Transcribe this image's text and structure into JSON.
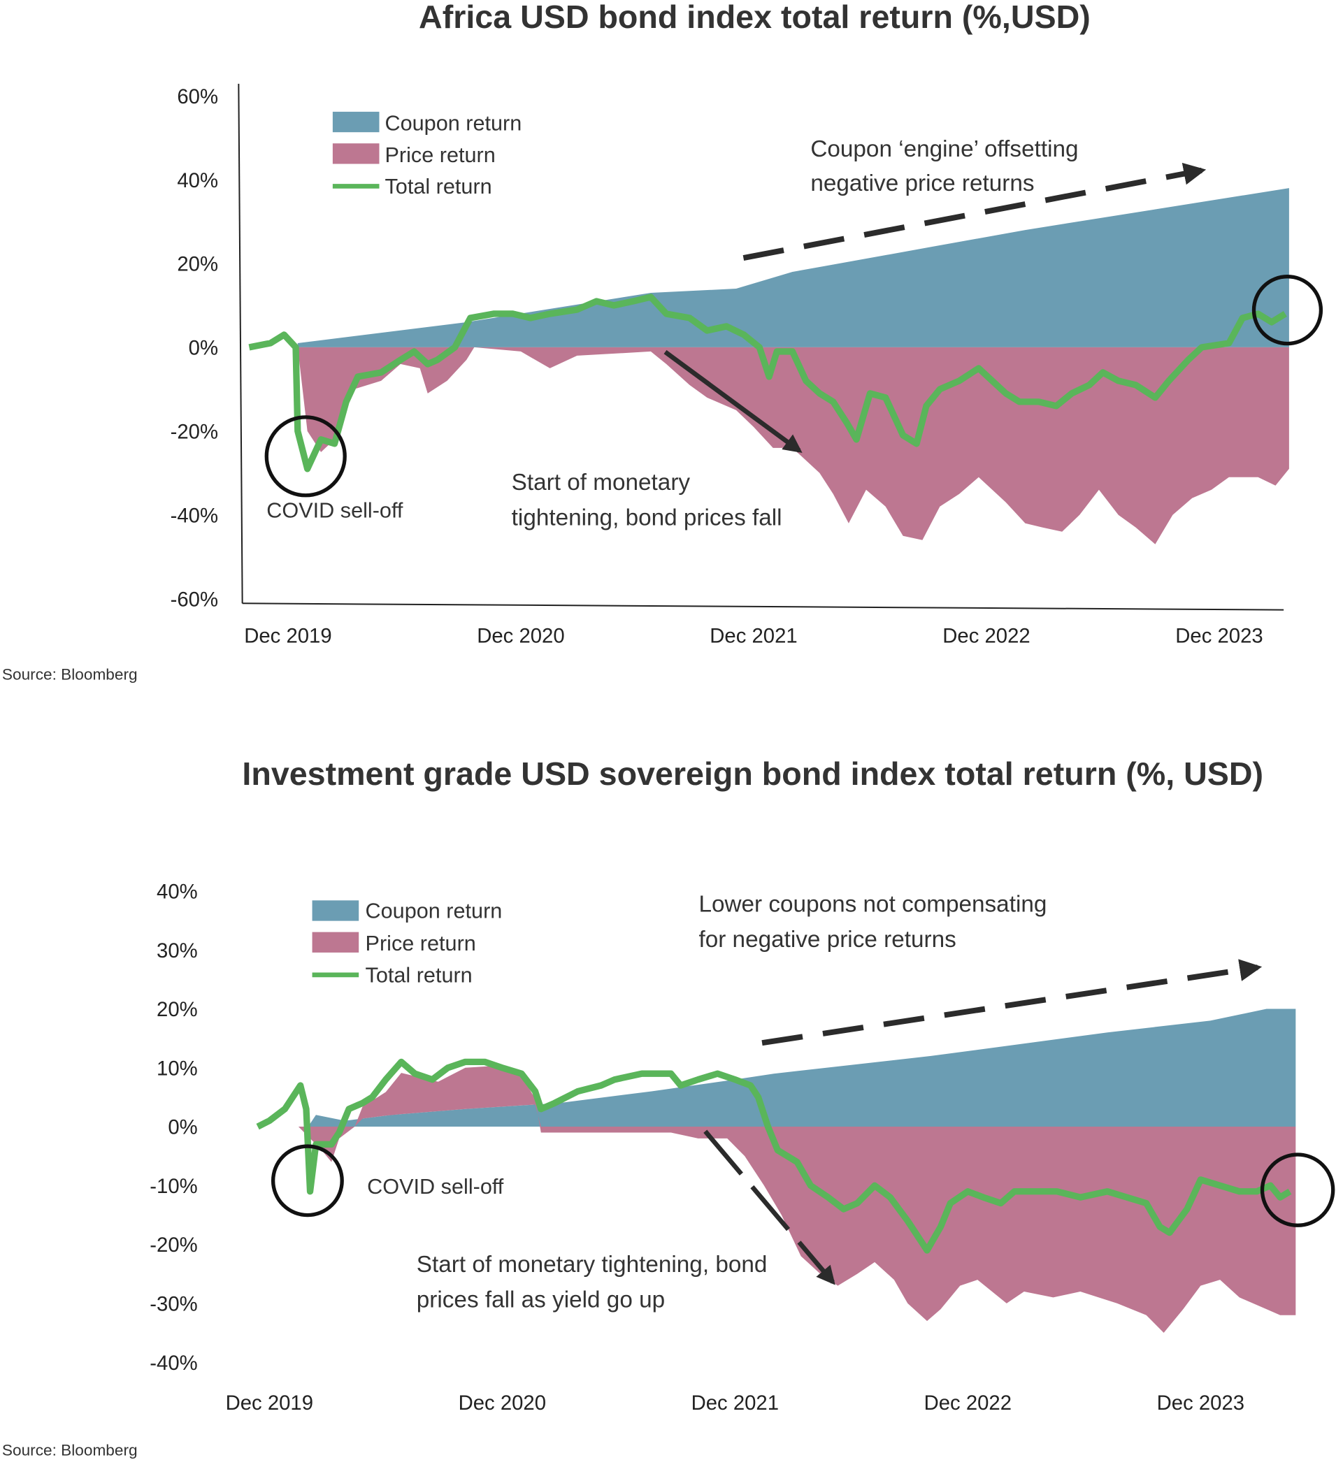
{
  "colors": {
    "coupon": "#6b9db3",
    "price": "#bd7791",
    "total": "#5ab55a",
    "annotation": "#2b2b2b"
  },
  "chart_data": [
    {
      "type": "area",
      "title": "Africa USD bond index total return (%,USD)",
      "x_unit": "months since Dec 2019",
      "ylim": [
        -60,
        60
      ],
      "y_ticks": [
        {
          "v": 60,
          "label": "60%"
        },
        {
          "v": 40,
          "label": "40%"
        },
        {
          "v": 20,
          "label": "20%"
        },
        {
          "v": 0,
          "label": "0%"
        },
        {
          "v": -20,
          "label": "-20%"
        },
        {
          "v": -40,
          "label": "-40%"
        },
        {
          "v": -60,
          "label": "-60%"
        }
      ],
      "x_ticks": [
        {
          "m": 0,
          "label": "Dec 2019"
        },
        {
          "m": 12,
          "label": "Dec 2020"
        },
        {
          "m": 24,
          "label": "Dec 2021"
        },
        {
          "m": 36,
          "label": "Dec 2022"
        },
        {
          "m": 48,
          "label": "Dec 2023"
        }
      ],
      "legend": [
        "Coupon return",
        "Price return",
        "Total return"
      ],
      "legend_position": "top-left",
      "series": {
        "coupon": [
          [
            0.5,
            1
          ],
          [
            9.2,
            6
          ],
          [
            18.7,
            13
          ],
          [
            23.1,
            14
          ],
          [
            26.0,
            18
          ],
          [
            33.2,
            24
          ],
          [
            38.0,
            28
          ],
          [
            51.6,
            38
          ]
        ],
        "price": [
          [
            0.5,
            0
          ],
          [
            1.0,
            -20
          ],
          [
            1.7,
            -25
          ],
          [
            2.4,
            -22
          ],
          [
            3.4,
            -10
          ],
          [
            4.8,
            -8
          ],
          [
            5.8,
            -4
          ],
          [
            6.8,
            -5
          ],
          [
            7.2,
            -11
          ],
          [
            8.2,
            -8
          ],
          [
            9.2,
            -3
          ],
          [
            9.6,
            0
          ],
          [
            12.0,
            -1
          ],
          [
            13.5,
            -5
          ],
          [
            14.9,
            -2
          ],
          [
            18.7,
            -1
          ],
          [
            19.5,
            -4
          ],
          [
            20.7,
            -9
          ],
          [
            21.6,
            -12
          ],
          [
            23.1,
            -15
          ],
          [
            24.0,
            -19
          ],
          [
            25.0,
            -24
          ],
          [
            26.0,
            -24
          ],
          [
            27.4,
            -30
          ],
          [
            28.1,
            -35
          ],
          [
            28.9,
            -42
          ],
          [
            29.8,
            -34
          ],
          [
            30.8,
            -38
          ],
          [
            31.7,
            -45
          ],
          [
            32.7,
            -46
          ],
          [
            33.6,
            -38
          ],
          [
            34.6,
            -35
          ],
          [
            35.6,
            -31
          ],
          [
            37.0,
            -37
          ],
          [
            38.0,
            -42
          ],
          [
            38.9,
            -43
          ],
          [
            39.9,
            -44
          ],
          [
            40.8,
            -40
          ],
          [
            41.8,
            -34
          ],
          [
            42.8,
            -40
          ],
          [
            43.7,
            -43
          ],
          [
            44.7,
            -47
          ],
          [
            45.6,
            -40
          ],
          [
            46.6,
            -36
          ],
          [
            47.6,
            -34
          ],
          [
            48.5,
            -31
          ],
          [
            50.0,
            -31
          ],
          [
            50.9,
            -33
          ],
          [
            51.6,
            -29
          ]
        ],
        "total": [
          [
            -2.0,
            0
          ],
          [
            -0.9,
            1
          ],
          [
            -0.2,
            3
          ],
          [
            0.4,
            0
          ],
          [
            0.5,
            -20
          ],
          [
            1.0,
            -29
          ],
          [
            1.7,
            -22
          ],
          [
            2.4,
            -23
          ],
          [
            3.0,
            -13
          ],
          [
            3.6,
            -7
          ],
          [
            4.8,
            -6
          ],
          [
            5.8,
            -3
          ],
          [
            6.5,
            -1
          ],
          [
            7.2,
            -4
          ],
          [
            7.7,
            -3
          ],
          [
            8.6,
            0
          ],
          [
            9.4,
            7
          ],
          [
            10.6,
            8
          ],
          [
            11.6,
            8
          ],
          [
            12.5,
            7
          ],
          [
            13.5,
            8
          ],
          [
            14.9,
            9
          ],
          [
            15.9,
            11
          ],
          [
            16.8,
            10
          ],
          [
            17.8,
            11
          ],
          [
            18.7,
            12
          ],
          [
            19.5,
            8
          ],
          [
            20.7,
            7
          ],
          [
            21.6,
            4
          ],
          [
            22.6,
            5
          ],
          [
            23.5,
            3
          ],
          [
            24.3,
            0
          ],
          [
            24.8,
            -7
          ],
          [
            25.2,
            -1
          ],
          [
            26.0,
            -1
          ],
          [
            26.7,
            -8
          ],
          [
            27.4,
            -11
          ],
          [
            28.1,
            -13
          ],
          [
            28.8,
            -18
          ],
          [
            29.3,
            -22
          ],
          [
            30.0,
            -11
          ],
          [
            30.8,
            -12
          ],
          [
            31.7,
            -21
          ],
          [
            32.4,
            -23
          ],
          [
            32.9,
            -14
          ],
          [
            33.6,
            -10
          ],
          [
            34.6,
            -8
          ],
          [
            35.6,
            -5
          ],
          [
            36.3,
            -8
          ],
          [
            37.0,
            -11
          ],
          [
            37.7,
            -13
          ],
          [
            38.7,
            -13
          ],
          [
            39.6,
            -14
          ],
          [
            40.4,
            -11
          ],
          [
            41.3,
            -9
          ],
          [
            42.0,
            -6
          ],
          [
            42.8,
            -8
          ],
          [
            43.7,
            -9
          ],
          [
            44.7,
            -12
          ],
          [
            45.4,
            -8
          ],
          [
            46.4,
            -3
          ],
          [
            47.1,
            0
          ],
          [
            48.5,
            1
          ],
          [
            49.2,
            7
          ],
          [
            50.0,
            8
          ],
          [
            50.7,
            6
          ],
          [
            51.4,
            8
          ]
        ]
      },
      "annotations": {
        "coupon_engine": [
          "Coupon ‘engine’ offsetting",
          "negative price returns"
        ],
        "covid": "COVID sell-off",
        "tightening": [
          "Start of monetary",
          "tightening, bond prices fall"
        ]
      },
      "source": "Source: Bloomberg"
    },
    {
      "type": "area",
      "title": "Investment grade USD sovereign bond index total return (%, USD)",
      "x_unit": "months since Dec 2019",
      "ylim": [
        -40,
        40
      ],
      "y_ticks": [
        {
          "v": 40,
          "label": "40%"
        },
        {
          "v": 30,
          "label": "30%"
        },
        {
          "v": 20,
          "label": "20%"
        },
        {
          "v": 10,
          "label": "10%"
        },
        {
          "v": 0,
          "label": "0%"
        },
        {
          "v": -10,
          "label": "-10%"
        },
        {
          "v": -20,
          "label": "-20%"
        },
        {
          "v": -30,
          "label": "-30%"
        },
        {
          "v": -40,
          "label": "-40%"
        }
      ],
      "x_ticks": [
        {
          "m": 0,
          "label": "Dec 2019"
        },
        {
          "m": 12,
          "label": "Dec 2020"
        },
        {
          "m": 24,
          "label": "Dec 2021"
        },
        {
          "m": 36,
          "label": "Dec 2022"
        },
        {
          "m": 48,
          "label": "Dec 2023"
        }
      ],
      "legend": [
        "Coupon return",
        "Price return",
        "Total return"
      ],
      "legend_position": "top-left",
      "series": {
        "coupon": [
          [
            2.0,
            0
          ],
          [
            2.4,
            2
          ],
          [
            3.9,
            1
          ],
          [
            6.3,
            2
          ],
          [
            10.1,
            3
          ],
          [
            14.9,
            4
          ],
          [
            19.7,
            6
          ],
          [
            24.0,
            8
          ],
          [
            26.0,
            9
          ],
          [
            34.1,
            12
          ],
          [
            43.2,
            16
          ],
          [
            48.5,
            18
          ],
          [
            51.4,
            20
          ],
          [
            52.9,
            20
          ]
        ],
        "price": [
          [
            -0.6,
            0
          ],
          [
            1.5,
            0
          ],
          [
            2.1,
            -2
          ],
          [
            2.7,
            -4
          ],
          [
            3.2,
            -6
          ],
          [
            3.6,
            -2
          ],
          [
            4.4,
            0
          ],
          [
            4.8,
            2
          ],
          [
            6.0,
            4
          ],
          [
            6.8,
            7
          ],
          [
            8.7,
            5
          ],
          [
            10.1,
            7
          ],
          [
            11.6,
            7
          ],
          [
            13.0,
            5
          ],
          [
            13.7,
            1
          ],
          [
            14.0,
            -1
          ],
          [
            17.3,
            -1
          ],
          [
            20.7,
            -1
          ],
          [
            22.1,
            -2
          ],
          [
            23.6,
            -2
          ],
          [
            24.5,
            -5
          ],
          [
            25.5,
            -10
          ],
          [
            26.4,
            -15
          ],
          [
            27.4,
            -22
          ],
          [
            28.4,
            -25
          ],
          [
            29.3,
            -27
          ],
          [
            30.3,
            -25
          ],
          [
            31.2,
            -23
          ],
          [
            32.2,
            -26
          ],
          [
            32.9,
            -30
          ],
          [
            33.9,
            -33
          ],
          [
            34.6,
            -31
          ],
          [
            35.6,
            -27
          ],
          [
            36.5,
            -26
          ],
          [
            38.0,
            -30
          ],
          [
            38.9,
            -28
          ],
          [
            40.4,
            -29
          ],
          [
            41.8,
            -28
          ],
          [
            43.7,
            -30
          ],
          [
            45.2,
            -32
          ],
          [
            46.1,
            -35
          ],
          [
            47.1,
            -31
          ],
          [
            48.0,
            -27
          ],
          [
            49.0,
            -26
          ],
          [
            50.0,
            -29
          ],
          [
            51.4,
            -31
          ],
          [
            52.1,
            -32
          ],
          [
            52.9,
            -32
          ]
        ],
        "total": [
          [
            -0.6,
            0
          ],
          [
            0.0,
            1
          ],
          [
            0.8,
            3
          ],
          [
            1.6,
            7
          ],
          [
            1.9,
            3
          ],
          [
            2.1,
            -11
          ],
          [
            2.4,
            -3
          ],
          [
            3.2,
            -3
          ],
          [
            3.6,
            -1
          ],
          [
            4.1,
            3
          ],
          [
            4.8,
            4
          ],
          [
            5.3,
            5
          ],
          [
            6.0,
            8
          ],
          [
            6.8,
            11
          ],
          [
            7.5,
            9
          ],
          [
            8.4,
            8
          ],
          [
            9.2,
            10
          ],
          [
            10.1,
            11
          ],
          [
            11.1,
            11
          ],
          [
            12.0,
            10
          ],
          [
            13.0,
            9
          ],
          [
            13.7,
            6
          ],
          [
            14.0,
            3
          ],
          [
            14.7,
            4
          ],
          [
            15.9,
            6
          ],
          [
            17.1,
            7
          ],
          [
            17.8,
            8
          ],
          [
            19.2,
            9
          ],
          [
            20.7,
            9
          ],
          [
            21.2,
            7
          ],
          [
            22.1,
            8
          ],
          [
            23.1,
            9
          ],
          [
            24.0,
            8
          ],
          [
            24.8,
            7
          ],
          [
            25.2,
            5
          ],
          [
            25.7,
            0
          ],
          [
            26.2,
            -4
          ],
          [
            27.2,
            -6
          ],
          [
            27.9,
            -10
          ],
          [
            28.8,
            -12
          ],
          [
            29.6,
            -14
          ],
          [
            30.3,
            -13
          ],
          [
            31.2,
            -10
          ],
          [
            32.0,
            -12
          ],
          [
            32.9,
            -16
          ],
          [
            33.9,
            -21
          ],
          [
            34.6,
            -17
          ],
          [
            35.1,
            -13
          ],
          [
            36.0,
            -11
          ],
          [
            36.8,
            -12
          ],
          [
            37.7,
            -13
          ],
          [
            38.4,
            -11
          ],
          [
            39.4,
            -11
          ],
          [
            40.6,
            -11
          ],
          [
            41.8,
            -12
          ],
          [
            43.2,
            -11
          ],
          [
            44.2,
            -12
          ],
          [
            45.2,
            -13
          ],
          [
            45.9,
            -17
          ],
          [
            46.4,
            -18
          ],
          [
            47.3,
            -14
          ],
          [
            48.0,
            -9
          ],
          [
            49.0,
            -10
          ],
          [
            50.0,
            -11
          ],
          [
            50.9,
            -11
          ],
          [
            51.6,
            -10
          ],
          [
            52.1,
            -12
          ],
          [
            52.6,
            -11
          ]
        ]
      },
      "annotations": {
        "lower_coupons": [
          "Lower coupons not compensating",
          "for negative price returns"
        ],
        "covid": "COVID sell-off",
        "tightening": [
          "Start of monetary tightening, bond",
          "prices fall as yield go up"
        ]
      },
      "source": "Source: Bloomberg"
    }
  ]
}
